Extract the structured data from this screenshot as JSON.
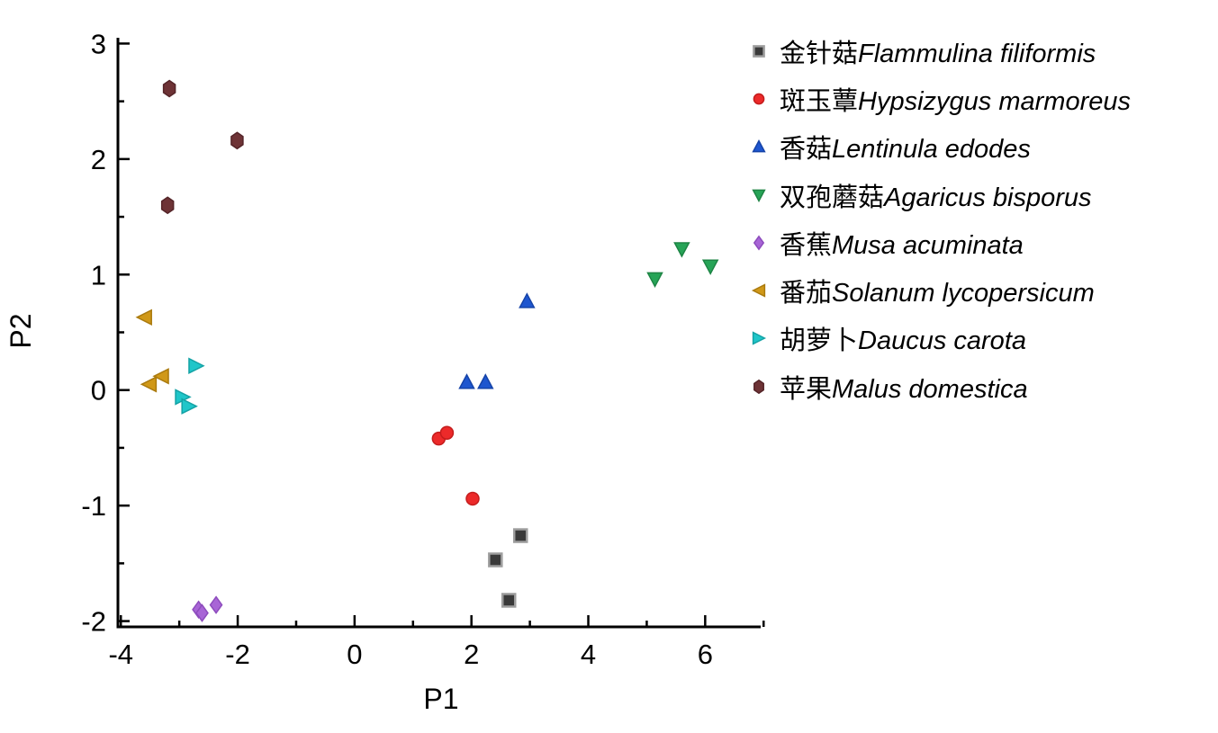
{
  "figure": {
    "background": "#ffffff",
    "axis_color": "#000000"
  },
  "chart_data": {
    "type": "scatter",
    "title": "",
    "xlabel": "P1",
    "ylabel": "P2",
    "xlim": [
      -4,
      7
    ],
    "ylim": [
      -2,
      3
    ],
    "x_major_ticks": [
      -4,
      -2,
      0,
      2,
      4,
      6
    ],
    "x_minor_ticks": [
      -3,
      -1,
      1,
      3,
      5,
      7
    ],
    "y_major_ticks": [
      -2,
      -1,
      0,
      1,
      2,
      3
    ],
    "y_minor_ticks": [
      -1.5,
      -0.5,
      0.5,
      1.5,
      2.5
    ],
    "grid": false,
    "legend_position": "right",
    "series": [
      {
        "name_cn": "金针菇",
        "name_latin": "Flammulina filiformis",
        "marker": "square",
        "color": "#3a3a3a",
        "stroke": "#9e9e9e",
        "points": [
          [
            2.84,
            -1.26
          ],
          [
            2.41,
            -1.47
          ],
          [
            2.64,
            -1.82
          ]
        ]
      },
      {
        "name_cn": "斑玉蕈",
        "name_latin": "Hypsizygus marmoreus",
        "marker": "circle",
        "color": "#ec2a2a",
        "stroke": "#c41d1d",
        "points": [
          [
            1.44,
            -0.42
          ],
          [
            1.58,
            -0.37
          ],
          [
            2.02,
            -0.94
          ]
        ]
      },
      {
        "name_cn": "香菇",
        "name_latin": "Lentinula edodes",
        "marker": "triangle-up",
        "color": "#1e56cf",
        "stroke": "#1543a8",
        "points": [
          [
            1.92,
            0.07
          ],
          [
            2.24,
            0.07
          ],
          [
            2.95,
            0.77
          ]
        ]
      },
      {
        "name_cn": "双孢蘑菇",
        "name_latin": "Agaricus bisporus",
        "marker": "triangle-down",
        "color": "#27a457",
        "stroke": "#1d8444",
        "points": [
          [
            5.14,
            0.96
          ],
          [
            5.6,
            1.22
          ],
          [
            6.09,
            1.07
          ]
        ]
      },
      {
        "name_cn": "香蕉",
        "name_latin": "Musa acuminata",
        "marker": "diamond",
        "color": "#a865d6",
        "stroke": "#8d4cbd",
        "points": [
          [
            -2.67,
            -1.9
          ],
          [
            -2.61,
            -1.93
          ],
          [
            -2.37,
            -1.86
          ]
        ]
      },
      {
        "name_cn": "番茄",
        "name_latin": "Solanum lycopersicum",
        "marker": "triangle-left",
        "color": "#d09818",
        "stroke": "#aa7a0e",
        "points": [
          [
            -3.6,
            0.63
          ],
          [
            -3.31,
            0.12
          ],
          [
            -3.52,
            0.05
          ]
        ]
      },
      {
        "name_cn": "胡萝卜",
        "name_latin": "Daucus carota",
        "marker": "triangle-right",
        "color": "#1fc6c9",
        "stroke": "#14a2a5",
        "points": [
          [
            -2.71,
            0.21
          ],
          [
            -2.94,
            -0.06
          ],
          [
            -2.83,
            -0.14
          ]
        ]
      },
      {
        "name_cn": "苹果",
        "name_latin": "Malus domestica",
        "marker": "hexagon",
        "color": "#6e3336",
        "stroke": "#542428",
        "points": [
          [
            -3.17,
            2.61
          ],
          [
            -2.01,
            2.16
          ],
          [
            -3.2,
            1.6
          ]
        ]
      }
    ]
  }
}
